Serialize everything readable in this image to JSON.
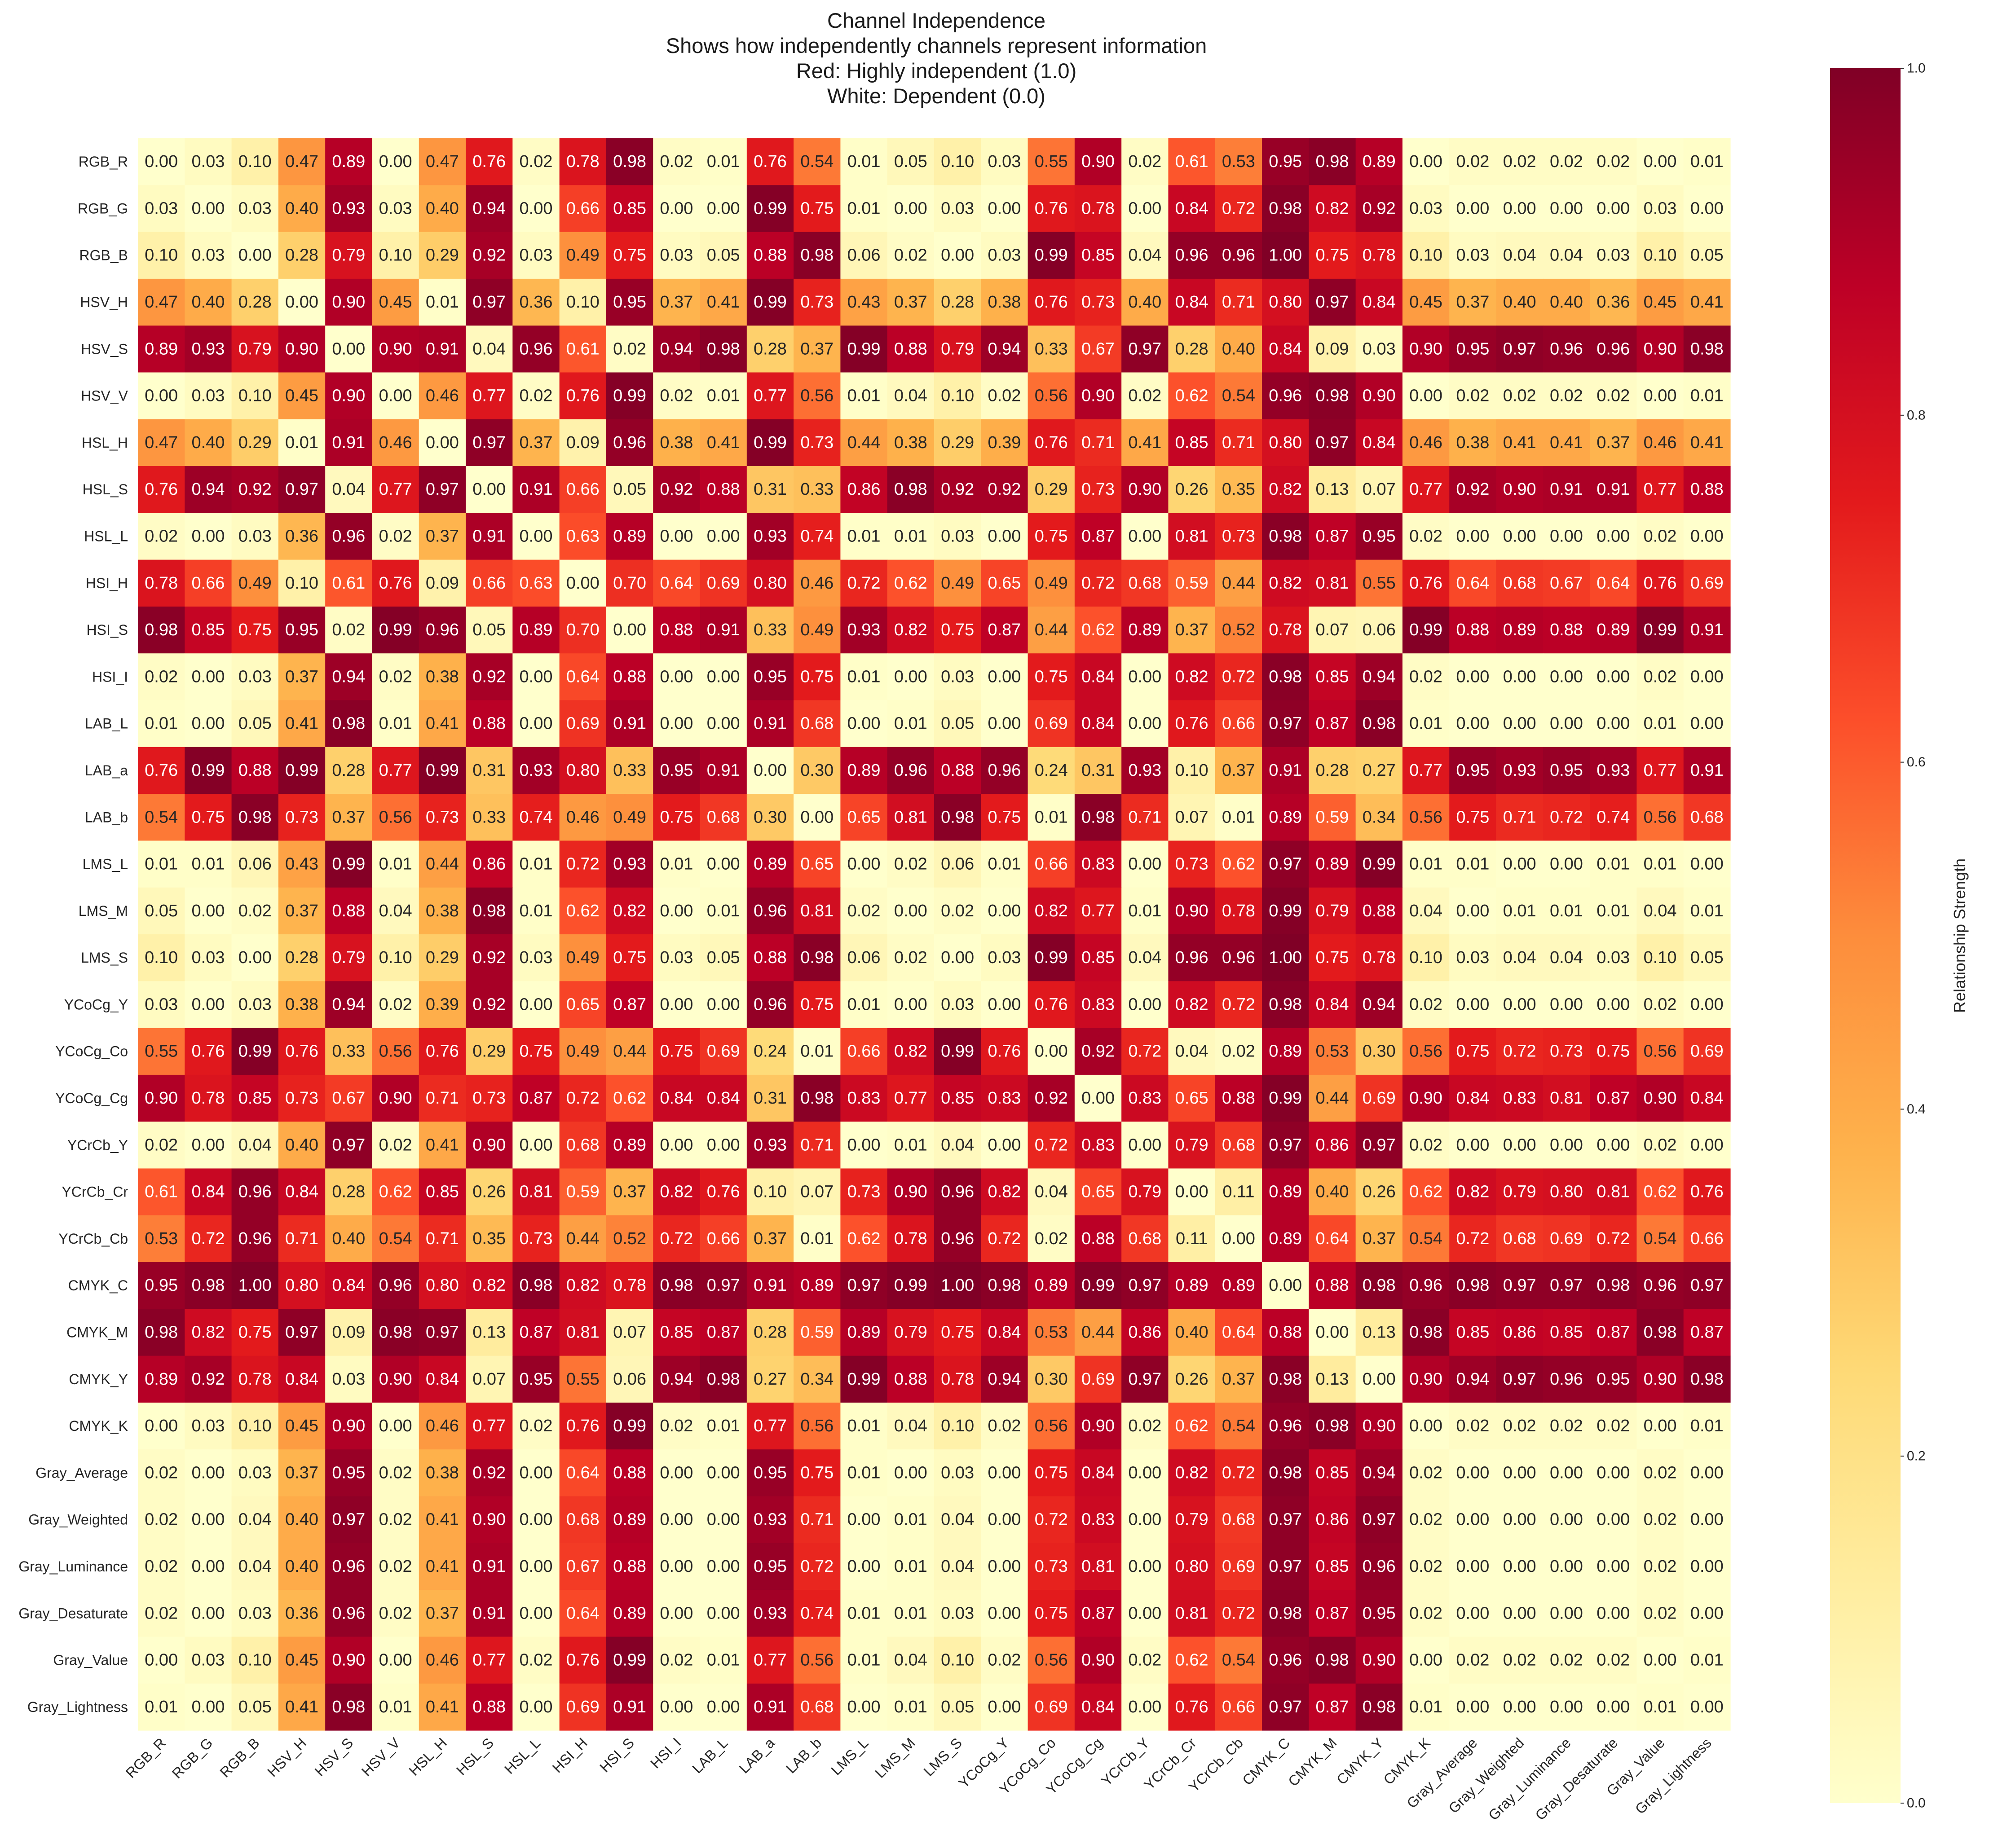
{
  "title_lines": [
    "Channel Independence",
    "Shows how independently channels represent information",
    "Red: Highly independent (1.0)",
    "White: Dependent (0.0)"
  ],
  "chart_data": {
    "type": "heatmap",
    "labels": [
      "RGB_R",
      "RGB_G",
      "RGB_B",
      "HSV_H",
      "HSV_S",
      "HSV_V",
      "HSL_H",
      "HSL_S",
      "HSL_L",
      "HSI_H",
      "HSI_S",
      "HSI_I",
      "LAB_L",
      "LAB_a",
      "LAB_b",
      "LMS_L",
      "LMS_M",
      "LMS_S",
      "YCoCg_Y",
      "YCoCg_Co",
      "YCoCg_Cg",
      "YCrCb_Y",
      "YCrCb_Cr",
      "YCrCb_Cb",
      "CMYK_C",
      "CMYK_M",
      "CMYK_Y",
      "CMYK_K",
      "Gray_Average",
      "Gray_Weighted",
      "Gray_Luminance",
      "Gray_Desaturate",
      "Gray_Value",
      "Gray_Lightness"
    ],
    "values": [
      [
        0.0,
        0.03,
        0.1,
        0.47,
        0.89,
        0.0,
        0.47,
        0.76,
        0.02,
        0.78,
        0.98,
        0.02,
        0.01,
        0.76,
        0.54,
        0.01,
        0.05,
        0.1,
        0.03,
        0.55,
        0.9,
        0.02,
        0.61,
        0.53,
        0.95,
        0.98,
        0.89,
        0.0,
        0.02,
        0.02,
        0.02,
        0.02,
        0.0,
        0.01
      ],
      [
        0.03,
        0.0,
        0.03,
        0.4,
        0.93,
        0.03,
        0.4,
        0.94,
        0.0,
        0.66,
        0.85,
        0.0,
        0.0,
        0.99,
        0.75,
        0.01,
        0.0,
        0.03,
        0.0,
        0.76,
        0.78,
        0.0,
        0.84,
        0.72,
        0.98,
        0.82,
        0.92,
        0.03,
        0.0,
        0.0,
        0.0,
        0.0,
        0.03,
        0.0
      ],
      [
        0.1,
        0.03,
        0.0,
        0.28,
        0.79,
        0.1,
        0.29,
        0.92,
        0.03,
        0.49,
        0.75,
        0.03,
        0.05,
        0.88,
        0.98,
        0.06,
        0.02,
        0.0,
        0.03,
        0.99,
        0.85,
        0.04,
        0.96,
        0.96,
        1.0,
        0.75,
        0.78,
        0.1,
        0.03,
        0.04,
        0.04,
        0.03,
        0.1,
        0.05
      ],
      [
        0.47,
        0.4,
        0.28,
        0.0,
        0.9,
        0.45,
        0.01,
        0.97,
        0.36,
        0.1,
        0.95,
        0.37,
        0.41,
        0.99,
        0.73,
        0.43,
        0.37,
        0.28,
        0.38,
        0.76,
        0.73,
        0.4,
        0.84,
        0.71,
        0.8,
        0.97,
        0.84,
        0.45,
        0.37,
        0.4,
        0.4,
        0.36,
        0.45,
        0.41
      ],
      [
        0.89,
        0.93,
        0.79,
        0.9,
        0.0,
        0.9,
        0.91,
        0.04,
        0.96,
        0.61,
        0.02,
        0.94,
        0.98,
        0.28,
        0.37,
        0.99,
        0.88,
        0.79,
        0.94,
        0.33,
        0.67,
        0.97,
        0.28,
        0.4,
        0.84,
        0.09,
        0.03,
        0.9,
        0.95,
        0.97,
        0.96,
        0.96,
        0.9,
        0.98
      ],
      [
        0.0,
        0.03,
        0.1,
        0.45,
        0.9,
        0.0,
        0.46,
        0.77,
        0.02,
        0.76,
        0.99,
        0.02,
        0.01,
        0.77,
        0.56,
        0.01,
        0.04,
        0.1,
        0.02,
        0.56,
        0.9,
        0.02,
        0.62,
        0.54,
        0.96,
        0.98,
        0.9,
        0.0,
        0.02,
        0.02,
        0.02,
        0.02,
        0.0,
        0.01
      ],
      [
        0.47,
        0.4,
        0.29,
        0.01,
        0.91,
        0.46,
        0.0,
        0.97,
        0.37,
        0.09,
        0.96,
        0.38,
        0.41,
        0.99,
        0.73,
        0.44,
        0.38,
        0.29,
        0.39,
        0.76,
        0.71,
        0.41,
        0.85,
        0.71,
        0.8,
        0.97,
        0.84,
        0.46,
        0.38,
        0.41,
        0.41,
        0.37,
        0.46,
        0.41
      ],
      [
        0.76,
        0.94,
        0.92,
        0.97,
        0.04,
        0.77,
        0.97,
        0.0,
        0.91,
        0.66,
        0.05,
        0.92,
        0.88,
        0.31,
        0.33,
        0.86,
        0.98,
        0.92,
        0.92,
        0.29,
        0.73,
        0.9,
        0.26,
        0.35,
        0.82,
        0.13,
        0.07,
        0.77,
        0.92,
        0.9,
        0.91,
        0.91,
        0.77,
        0.88
      ],
      [
        0.02,
        0.0,
        0.03,
        0.36,
        0.96,
        0.02,
        0.37,
        0.91,
        0.0,
        0.63,
        0.89,
        0.0,
        0.0,
        0.93,
        0.74,
        0.01,
        0.01,
        0.03,
        0.0,
        0.75,
        0.87,
        0.0,
        0.81,
        0.73,
        0.98,
        0.87,
        0.95,
        0.02,
        0.0,
        0.0,
        0.0,
        0.0,
        0.02,
        0.0
      ],
      [
        0.78,
        0.66,
        0.49,
        0.1,
        0.61,
        0.76,
        0.09,
        0.66,
        0.63,
        0.0,
        0.7,
        0.64,
        0.69,
        0.8,
        0.46,
        0.72,
        0.62,
        0.49,
        0.65,
        0.49,
        0.72,
        0.68,
        0.59,
        0.44,
        0.82,
        0.81,
        0.55,
        0.76,
        0.64,
        0.68,
        0.67,
        0.64,
        0.76,
        0.69
      ],
      [
        0.98,
        0.85,
        0.75,
        0.95,
        0.02,
        0.99,
        0.96,
        0.05,
        0.89,
        0.7,
        0.0,
        0.88,
        0.91,
        0.33,
        0.49,
        0.93,
        0.82,
        0.75,
        0.87,
        0.44,
        0.62,
        0.89,
        0.37,
        0.52,
        0.78,
        0.07,
        0.06,
        0.99,
        0.88,
        0.89,
        0.88,
        0.89,
        0.99,
        0.91
      ],
      [
        0.02,
        0.0,
        0.03,
        0.37,
        0.94,
        0.02,
        0.38,
        0.92,
        0.0,
        0.64,
        0.88,
        0.0,
        0.0,
        0.95,
        0.75,
        0.01,
        0.0,
        0.03,
        0.0,
        0.75,
        0.84,
        0.0,
        0.82,
        0.72,
        0.98,
        0.85,
        0.94,
        0.02,
        0.0,
        0.0,
        0.0,
        0.0,
        0.02,
        0.0
      ],
      [
        0.01,
        0.0,
        0.05,
        0.41,
        0.98,
        0.01,
        0.41,
        0.88,
        0.0,
        0.69,
        0.91,
        0.0,
        0.0,
        0.91,
        0.68,
        0.0,
        0.01,
        0.05,
        0.0,
        0.69,
        0.84,
        0.0,
        0.76,
        0.66,
        0.97,
        0.87,
        0.98,
        0.01,
        0.0,
        0.0,
        0.0,
        0.0,
        0.01,
        0.0
      ],
      [
        0.76,
        0.99,
        0.88,
        0.99,
        0.28,
        0.77,
        0.99,
        0.31,
        0.93,
        0.8,
        0.33,
        0.95,
        0.91,
        0.0,
        0.3,
        0.89,
        0.96,
        0.88,
        0.96,
        0.24,
        0.31,
        0.93,
        0.1,
        0.37,
        0.91,
        0.28,
        0.27,
        0.77,
        0.95,
        0.93,
        0.95,
        0.93,
        0.77,
        0.91
      ],
      [
        0.54,
        0.75,
        0.98,
        0.73,
        0.37,
        0.56,
        0.73,
        0.33,
        0.74,
        0.46,
        0.49,
        0.75,
        0.68,
        0.3,
        0.0,
        0.65,
        0.81,
        0.98,
        0.75,
        0.01,
        0.98,
        0.71,
        0.07,
        0.01,
        0.89,
        0.59,
        0.34,
        0.56,
        0.75,
        0.71,
        0.72,
        0.74,
        0.56,
        0.68
      ],
      [
        0.01,
        0.01,
        0.06,
        0.43,
        0.99,
        0.01,
        0.44,
        0.86,
        0.01,
        0.72,
        0.93,
        0.01,
        0.0,
        0.89,
        0.65,
        0.0,
        0.02,
        0.06,
        0.01,
        0.66,
        0.83,
        0.0,
        0.73,
        0.62,
        0.97,
        0.89,
        0.99,
        0.01,
        0.01,
        0.0,
        0.0,
        0.01,
        0.01,
        0.0
      ],
      [
        0.05,
        0.0,
        0.02,
        0.37,
        0.88,
        0.04,
        0.38,
        0.98,
        0.01,
        0.62,
        0.82,
        0.0,
        0.01,
        0.96,
        0.81,
        0.02,
        0.0,
        0.02,
        0.0,
        0.82,
        0.77,
        0.01,
        0.9,
        0.78,
        0.99,
        0.79,
        0.88,
        0.04,
        0.0,
        0.01,
        0.01,
        0.01,
        0.04,
        0.01
      ],
      [
        0.1,
        0.03,
        0.0,
        0.28,
        0.79,
        0.1,
        0.29,
        0.92,
        0.03,
        0.49,
        0.75,
        0.03,
        0.05,
        0.88,
        0.98,
        0.06,
        0.02,
        0.0,
        0.03,
        0.99,
        0.85,
        0.04,
        0.96,
        0.96,
        1.0,
        0.75,
        0.78,
        0.1,
        0.03,
        0.04,
        0.04,
        0.03,
        0.1,
        0.05
      ],
      [
        0.03,
        0.0,
        0.03,
        0.38,
        0.94,
        0.02,
        0.39,
        0.92,
        0.0,
        0.65,
        0.87,
        0.0,
        0.0,
        0.96,
        0.75,
        0.01,
        0.0,
        0.03,
        0.0,
        0.76,
        0.83,
        0.0,
        0.82,
        0.72,
        0.98,
        0.84,
        0.94,
        0.02,
        0.0,
        0.0,
        0.0,
        0.0,
        0.02,
        0.0
      ],
      [
        0.55,
        0.76,
        0.99,
        0.76,
        0.33,
        0.56,
        0.76,
        0.29,
        0.75,
        0.49,
        0.44,
        0.75,
        0.69,
        0.24,
        0.01,
        0.66,
        0.82,
        0.99,
        0.76,
        0.0,
        0.92,
        0.72,
        0.04,
        0.02,
        0.89,
        0.53,
        0.3,
        0.56,
        0.75,
        0.72,
        0.73,
        0.75,
        0.56,
        0.69
      ],
      [
        0.9,
        0.78,
        0.85,
        0.73,
        0.67,
        0.9,
        0.71,
        0.73,
        0.87,
        0.72,
        0.62,
        0.84,
        0.84,
        0.31,
        0.98,
        0.83,
        0.77,
        0.85,
        0.83,
        0.92,
        0.0,
        0.83,
        0.65,
        0.88,
        0.99,
        0.44,
        0.69,
        0.9,
        0.84,
        0.83,
        0.81,
        0.87,
        0.9,
        0.84
      ],
      [
        0.02,
        0.0,
        0.04,
        0.4,
        0.97,
        0.02,
        0.41,
        0.9,
        0.0,
        0.68,
        0.89,
        0.0,
        0.0,
        0.93,
        0.71,
        0.0,
        0.01,
        0.04,
        0.0,
        0.72,
        0.83,
        0.0,
        0.79,
        0.68,
        0.97,
        0.86,
        0.97,
        0.02,
        0.0,
        0.0,
        0.0,
        0.0,
        0.02,
        0.0
      ],
      [
        0.61,
        0.84,
        0.96,
        0.84,
        0.28,
        0.62,
        0.85,
        0.26,
        0.81,
        0.59,
        0.37,
        0.82,
        0.76,
        0.1,
        0.07,
        0.73,
        0.9,
        0.96,
        0.82,
        0.04,
        0.65,
        0.79,
        0.0,
        0.11,
        0.89,
        0.4,
        0.26,
        0.62,
        0.82,
        0.79,
        0.8,
        0.81,
        0.62,
        0.76
      ],
      [
        0.53,
        0.72,
        0.96,
        0.71,
        0.4,
        0.54,
        0.71,
        0.35,
        0.73,
        0.44,
        0.52,
        0.72,
        0.66,
        0.37,
        0.01,
        0.62,
        0.78,
        0.96,
        0.72,
        0.02,
        0.88,
        0.68,
        0.11,
        0.0,
        0.89,
        0.64,
        0.37,
        0.54,
        0.72,
        0.68,
        0.69,
        0.72,
        0.54,
        0.66
      ],
      [
        0.95,
        0.98,
        1.0,
        0.8,
        0.84,
        0.96,
        0.8,
        0.82,
        0.98,
        0.82,
        0.78,
        0.98,
        0.97,
        0.91,
        0.89,
        0.97,
        0.99,
        1.0,
        0.98,
        0.89,
        0.99,
        0.97,
        0.89,
        0.89,
        0.0,
        0.88,
        0.98,
        0.96,
        0.98,
        0.97,
        0.97,
        0.98,
        0.96,
        0.97
      ],
      [
        0.98,
        0.82,
        0.75,
        0.97,
        0.09,
        0.98,
        0.97,
        0.13,
        0.87,
        0.81,
        0.07,
        0.85,
        0.87,
        0.28,
        0.59,
        0.89,
        0.79,
        0.75,
        0.84,
        0.53,
        0.44,
        0.86,
        0.4,
        0.64,
        0.88,
        0.0,
        0.13,
        0.98,
        0.85,
        0.86,
        0.85,
        0.87,
        0.98,
        0.87
      ],
      [
        0.89,
        0.92,
        0.78,
        0.84,
        0.03,
        0.9,
        0.84,
        0.07,
        0.95,
        0.55,
        0.06,
        0.94,
        0.98,
        0.27,
        0.34,
        0.99,
        0.88,
        0.78,
        0.94,
        0.3,
        0.69,
        0.97,
        0.26,
        0.37,
        0.98,
        0.13,
        0.0,
        0.9,
        0.94,
        0.97,
        0.96,
        0.95,
        0.9,
        0.98
      ],
      [
        0.0,
        0.03,
        0.1,
        0.45,
        0.9,
        0.0,
        0.46,
        0.77,
        0.02,
        0.76,
        0.99,
        0.02,
        0.01,
        0.77,
        0.56,
        0.01,
        0.04,
        0.1,
        0.02,
        0.56,
        0.9,
        0.02,
        0.62,
        0.54,
        0.96,
        0.98,
        0.9,
        0.0,
        0.02,
        0.02,
        0.02,
        0.02,
        0.0,
        0.01
      ],
      [
        0.02,
        0.0,
        0.03,
        0.37,
        0.95,
        0.02,
        0.38,
        0.92,
        0.0,
        0.64,
        0.88,
        0.0,
        0.0,
        0.95,
        0.75,
        0.01,
        0.0,
        0.03,
        0.0,
        0.75,
        0.84,
        0.0,
        0.82,
        0.72,
        0.98,
        0.85,
        0.94,
        0.02,
        0.0,
        0.0,
        0.0,
        0.0,
        0.02,
        0.0
      ],
      [
        0.02,
        0.0,
        0.04,
        0.4,
        0.97,
        0.02,
        0.41,
        0.9,
        0.0,
        0.68,
        0.89,
        0.0,
        0.0,
        0.93,
        0.71,
        0.0,
        0.01,
        0.04,
        0.0,
        0.72,
        0.83,
        0.0,
        0.79,
        0.68,
        0.97,
        0.86,
        0.97,
        0.02,
        0.0,
        0.0,
        0.0,
        0.0,
        0.02,
        0.0
      ],
      [
        0.02,
        0.0,
        0.04,
        0.4,
        0.96,
        0.02,
        0.41,
        0.91,
        0.0,
        0.67,
        0.88,
        0.0,
        0.0,
        0.95,
        0.72,
        0.0,
        0.01,
        0.04,
        0.0,
        0.73,
        0.81,
        0.0,
        0.8,
        0.69,
        0.97,
        0.85,
        0.96,
        0.02,
        0.0,
        0.0,
        0.0,
        0.0,
        0.02,
        0.0
      ],
      [
        0.02,
        0.0,
        0.03,
        0.36,
        0.96,
        0.02,
        0.37,
        0.91,
        0.0,
        0.64,
        0.89,
        0.0,
        0.0,
        0.93,
        0.74,
        0.01,
        0.01,
        0.03,
        0.0,
        0.75,
        0.87,
        0.0,
        0.81,
        0.72,
        0.98,
        0.87,
        0.95,
        0.02,
        0.0,
        0.0,
        0.0,
        0.0,
        0.02,
        0.0
      ],
      [
        0.0,
        0.03,
        0.1,
        0.45,
        0.9,
        0.0,
        0.46,
        0.77,
        0.02,
        0.76,
        0.99,
        0.02,
        0.01,
        0.77,
        0.56,
        0.01,
        0.04,
        0.1,
        0.02,
        0.56,
        0.9,
        0.02,
        0.62,
        0.54,
        0.96,
        0.98,
        0.9,
        0.0,
        0.02,
        0.02,
        0.02,
        0.02,
        0.0,
        0.01
      ],
      [
        0.01,
        0.0,
        0.05,
        0.41,
        0.98,
        0.01,
        0.41,
        0.88,
        0.0,
        0.69,
        0.91,
        0.0,
        0.0,
        0.91,
        0.68,
        0.0,
        0.01,
        0.05,
        0.0,
        0.69,
        0.84,
        0.0,
        0.76,
        0.66,
        0.97,
        0.87,
        0.98,
        0.01,
        0.0,
        0.0,
        0.0,
        0.0,
        0.01,
        0.0
      ]
    ],
    "value_format": "2 decimals",
    "colorscale": "YlOrRd",
    "vmin": 0.0,
    "vmax": 1.0,
    "colorbar": {
      "label": "Relationship Strength",
      "ticks": [
        "0.0",
        "0.2",
        "0.4",
        "0.6",
        "0.8",
        "1.0"
      ],
      "placement": "right"
    }
  }
}
